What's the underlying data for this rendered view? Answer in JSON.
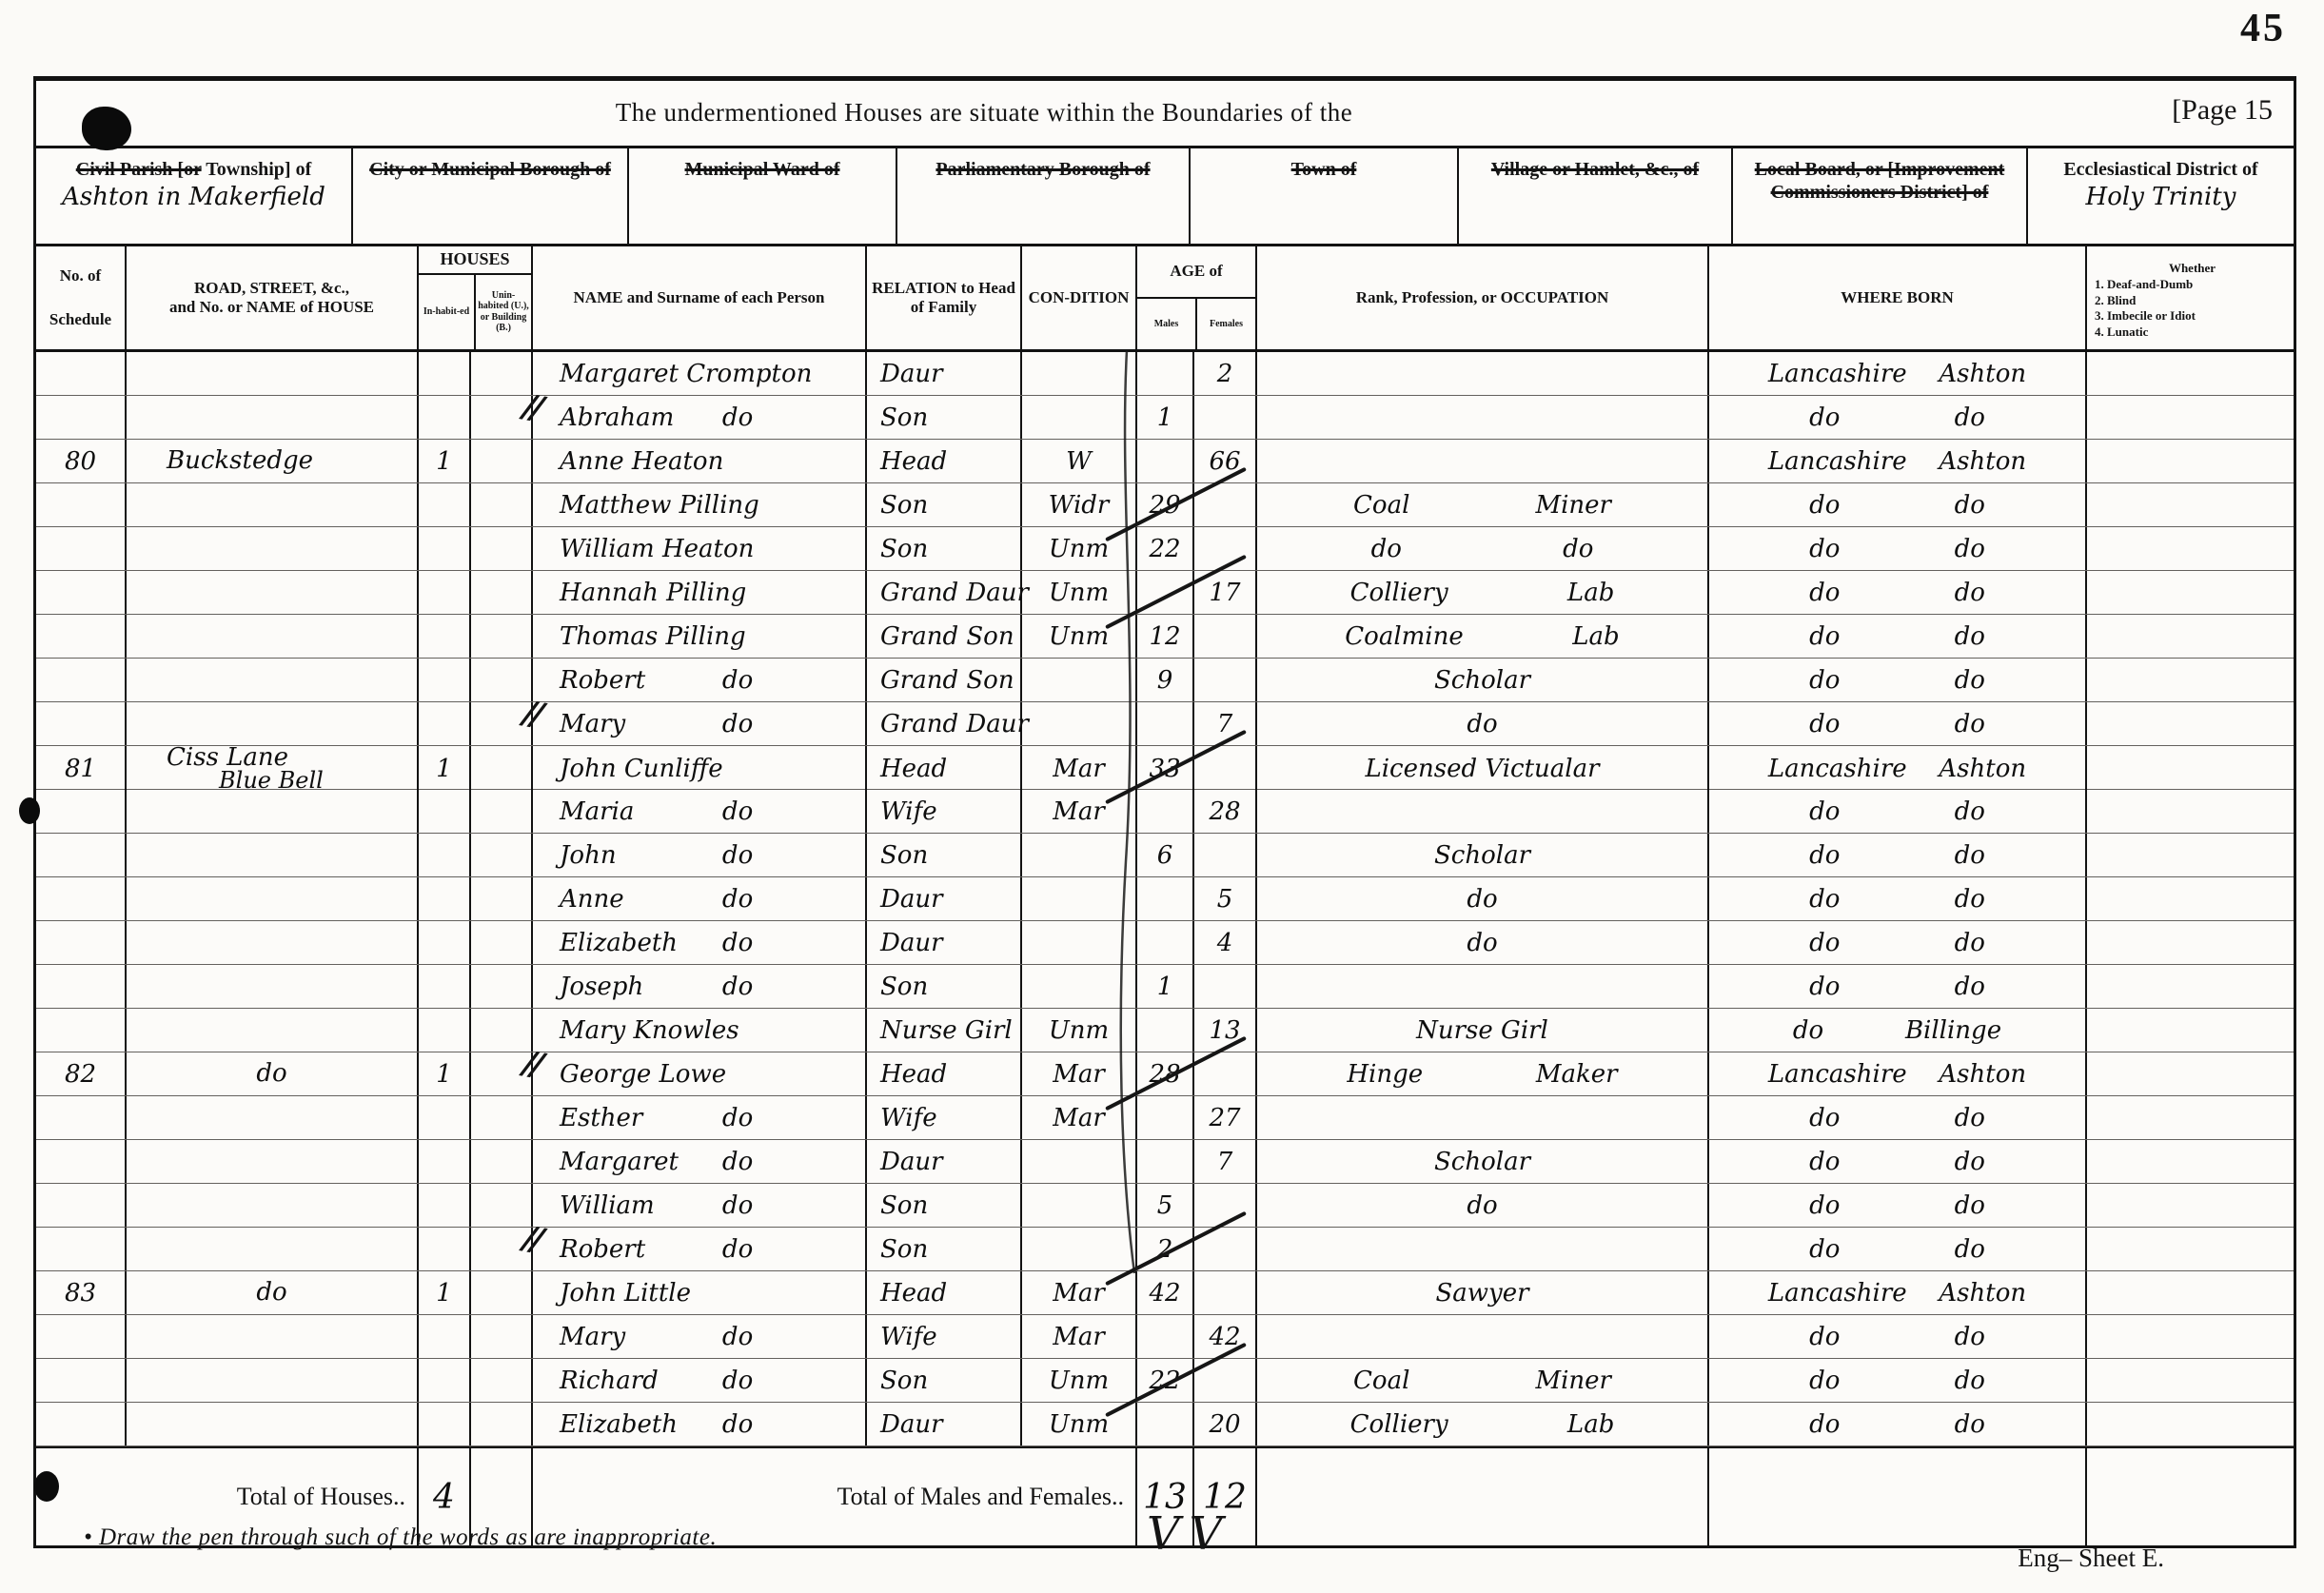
{
  "page": {
    "corner_number": "45",
    "title": "The undermentioned Houses are situate within the Boundaries of the",
    "page_label": "[Page 15",
    "footnote": "• Draw the pen through such of the words as are inappropriate.",
    "sheet_label": "Eng– Sheet E.",
    "check_marks": "VV"
  },
  "location_header": [
    {
      "struck": "Civil Parish [or",
      "plain": "Township] of",
      "value": "Ashton in Makerfield"
    },
    {
      "struck": "City or Municipal Borough of",
      "plain": "",
      "value": ""
    },
    {
      "struck": "Municipal Ward of",
      "plain": "",
      "value": ""
    },
    {
      "struck": "Parliamentary Borough of",
      "plain": "",
      "value": ""
    },
    {
      "struck": "Town of",
      "plain": "",
      "value": ""
    },
    {
      "struck": "Village or Hamlet, &c., of",
      "plain": "",
      "value": ""
    },
    {
      "struck": "Local Board, or [Improvement Commissioners District] of",
      "plain": "",
      "value": ""
    },
    {
      "struck": "",
      "plain": "Ecclesiastical District of",
      "value": "Holy Trinity"
    }
  ],
  "columns": {
    "schedule1": "No. of",
    "schedule2": "Schedule",
    "road1": "ROAD, STREET, &c.,",
    "road2": "and No. or NAME of HOUSE",
    "houses": "HOUSES",
    "inhabited": "In-habit-ed",
    "uninhabited": "Unin-habited (U.), or Building (B.)",
    "name": "NAME and Surname of each Person",
    "relation": "RELATION to Head of Family",
    "condition": "CON-DITION",
    "age": "AGE of",
    "males": "Males",
    "females": "Females",
    "occupation": "Rank, Profession, or OCCUPATION",
    "born": "WHERE BORN",
    "disab": [
      "Whether",
      "1. Deaf-and-Dumb",
      "2. Blind",
      "3. Imbecile or Idiot",
      "4. Lunatic"
    ]
  },
  "table": {
    "rows": [
      {
        "s": "",
        "road": [],
        "inh": "",
        "n1": "Margaret Crompton",
        "n2": "",
        "sep": false,
        "rel": "Daur",
        "cond": "",
        "am": "",
        "af": "2",
        "occ": [],
        "b1": "Lancashire",
        "b2": "Ashton",
        "slash": false
      },
      {
        "s": "",
        "road": [],
        "inh": "",
        "n1": "Abraham",
        "n2": "do",
        "sep": true,
        "rel": "Son",
        "cond": "",
        "am": "1",
        "af": "",
        "occ": [],
        "b1": "do",
        "b2": "do",
        "slash": false
      },
      {
        "s": "80",
        "road": [
          "Buckstedge"
        ],
        "inh": "1",
        "n1": "Anne Heaton",
        "n2": "",
        "sep": false,
        "rel": "Head",
        "cond": "W",
        "am": "",
        "af": "66",
        "occ": [],
        "b1": "Lancashire",
        "b2": "Ashton",
        "slash": false
      },
      {
        "s": "",
        "road": [],
        "inh": "",
        "n1": "Matthew Pilling",
        "n2": "",
        "sep": false,
        "rel": "Son",
        "cond": "Widr",
        "am": "29",
        "af": "",
        "occ": [
          "Coal",
          "Miner"
        ],
        "b1": "do",
        "b2": "do",
        "slash": true
      },
      {
        "s": "",
        "road": [],
        "inh": "",
        "n1": "William Heaton",
        "n2": "",
        "sep": false,
        "rel": "Son",
        "cond": "Unm",
        "am": "22",
        "af": "",
        "occ": [
          "do",
          "do"
        ],
        "b1": "do",
        "b2": "do",
        "slash": false
      },
      {
        "s": "",
        "road": [],
        "inh": "",
        "n1": "Hannah Pilling",
        "n2": "",
        "sep": false,
        "rel": "Grand Daur",
        "cond": "Unm",
        "am": "",
        "af": "17",
        "occ": [
          "Colliery",
          "Lab"
        ],
        "b1": "do",
        "b2": "do",
        "slash": true
      },
      {
        "s": "",
        "road": [],
        "inh": "",
        "n1": "Thomas Pilling",
        "n2": "",
        "sep": false,
        "rel": "Grand Son",
        "cond": "Unm",
        "am": "12",
        "af": "",
        "occ": [
          "Coalmine",
          "Lab"
        ],
        "b1": "do",
        "b2": "do",
        "slash": false
      },
      {
        "s": "",
        "road": [],
        "inh": "",
        "n1": "Robert",
        "n2": "do",
        "sep": false,
        "rel": "Grand Son",
        "cond": "",
        "am": "9",
        "af": "",
        "occ": [
          "Scholar"
        ],
        "b1": "do",
        "b2": "do",
        "slash": false
      },
      {
        "s": "",
        "road": [],
        "inh": "",
        "n1": "Mary",
        "n2": "do",
        "sep": true,
        "rel": "Grand Daur",
        "cond": "",
        "am": "",
        "af": "7",
        "occ": [
          "do"
        ],
        "b1": "do",
        "b2": "do",
        "slash": false
      },
      {
        "s": "81",
        "road": [
          "Ciss Lane",
          "Blue Bell"
        ],
        "inh": "1",
        "n1": "John Cunliffe",
        "n2": "",
        "sep": false,
        "rel": "Head",
        "cond": "Mar",
        "am": "33",
        "af": "",
        "occ": [
          "Licensed Victualar"
        ],
        "b1": "Lancashire",
        "b2": "Ashton",
        "slash": true
      },
      {
        "s": "",
        "road": [],
        "inh": "",
        "n1": "Maria",
        "n2": "do",
        "sep": false,
        "rel": "Wife",
        "cond": "Mar",
        "am": "",
        "af": "28",
        "occ": [],
        "b1": "do",
        "b2": "do",
        "slash": false
      },
      {
        "s": "",
        "road": [],
        "inh": "",
        "n1": "John",
        "n2": "do",
        "sep": false,
        "rel": "Son",
        "cond": "",
        "am": "6",
        "af": "",
        "occ": [
          "Scholar"
        ],
        "b1": "do",
        "b2": "do",
        "slash": false
      },
      {
        "s": "",
        "road": [],
        "inh": "",
        "n1": "Anne",
        "n2": "do",
        "sep": false,
        "rel": "Daur",
        "cond": "",
        "am": "",
        "af": "5",
        "occ": [
          "do"
        ],
        "b1": "do",
        "b2": "do",
        "slash": false
      },
      {
        "s": "",
        "road": [],
        "inh": "",
        "n1": "Elizabeth",
        "n2": "do",
        "sep": false,
        "rel": "Daur",
        "cond": "",
        "am": "",
        "af": "4",
        "occ": [
          "do"
        ],
        "b1": "do",
        "b2": "do",
        "slash": false
      },
      {
        "s": "",
        "road": [],
        "inh": "",
        "n1": "Joseph",
        "n2": "do",
        "sep": false,
        "rel": "Son",
        "cond": "",
        "am": "1",
        "af": "",
        "occ": [],
        "b1": "do",
        "b2": "do",
        "slash": false
      },
      {
        "s": "",
        "road": [],
        "inh": "",
        "n1": "Mary Knowles",
        "n2": "",
        "sep": false,
        "rel": "Nurse Girl",
        "cond": "Unm",
        "am": "",
        "af": "13",
        "occ": [
          "Nurse Girl"
        ],
        "b1": "do",
        "b2": "Billinge",
        "slash": false
      },
      {
        "s": "82",
        "road": [
          "do"
        ],
        "inh": "1",
        "n1": "George Lowe",
        "n2": "",
        "sep": true,
        "rel": "Head",
        "cond": "Mar",
        "am": "28",
        "af": "",
        "occ": [
          "Hinge",
          "Maker"
        ],
        "b1": "Lancashire",
        "b2": "Ashton",
        "slash": true
      },
      {
        "s": "",
        "road": [],
        "inh": "",
        "n1": "Esther",
        "n2": "do",
        "sep": false,
        "rel": "Wife",
        "cond": "Mar",
        "am": "",
        "af": "27",
        "occ": [],
        "b1": "do",
        "b2": "do",
        "slash": false
      },
      {
        "s": "",
        "road": [],
        "inh": "",
        "n1": "Margaret",
        "n2": "do",
        "sep": false,
        "rel": "Daur",
        "cond": "",
        "am": "",
        "af": "7",
        "occ": [
          "Scholar"
        ],
        "b1": "do",
        "b2": "do",
        "slash": false
      },
      {
        "s": "",
        "road": [],
        "inh": "",
        "n1": "William",
        "n2": "do",
        "sep": false,
        "rel": "Son",
        "cond": "",
        "am": "5",
        "af": "",
        "occ": [
          "do"
        ],
        "b1": "do",
        "b2": "do",
        "slash": false
      },
      {
        "s": "",
        "road": [],
        "inh": "",
        "n1": "Robert",
        "n2": "do",
        "sep": true,
        "rel": "Son",
        "cond": "",
        "am": "2",
        "af": "",
        "occ": [],
        "b1": "do",
        "b2": "do",
        "slash": true
      },
      {
        "s": "83",
        "road": [
          "do"
        ],
        "inh": "1",
        "n1": "John Little",
        "n2": "",
        "sep": false,
        "rel": "Head",
        "cond": "Mar",
        "am": "42",
        "af": "",
        "occ": [
          "Sawyer"
        ],
        "b1": "Lancashire",
        "b2": "Ashton",
        "slash": false
      },
      {
        "s": "",
        "road": [],
        "inh": "",
        "n1": "Mary",
        "n2": "do",
        "sep": false,
        "rel": "Wife",
        "cond": "Mar",
        "am": "",
        "af": "42",
        "occ": [],
        "b1": "do",
        "b2": "do",
        "slash": false
      },
      {
        "s": "",
        "road": [],
        "inh": "",
        "n1": "Richard",
        "n2": "do",
        "sep": false,
        "rel": "Son",
        "cond": "Unm",
        "am": "22",
        "af": "",
        "occ": [
          "Coal",
          "Miner"
        ],
        "b1": "do",
        "b2": "do",
        "slash": true
      },
      {
        "s": "",
        "road": [],
        "inh": "",
        "n1": "Elizabeth",
        "n2": "do",
        "sep": false,
        "rel": "Daur",
        "cond": "Unm",
        "am": "",
        "af": "20",
        "occ": [
          "Colliery",
          "Lab"
        ],
        "b1": "do",
        "b2": "do",
        "slash": false
      }
    ]
  },
  "totals": {
    "houses_label": "Total of Houses..",
    "houses_value": "4",
    "mf_label": "Total of Males and Females..",
    "males": "13",
    "females": "12"
  }
}
